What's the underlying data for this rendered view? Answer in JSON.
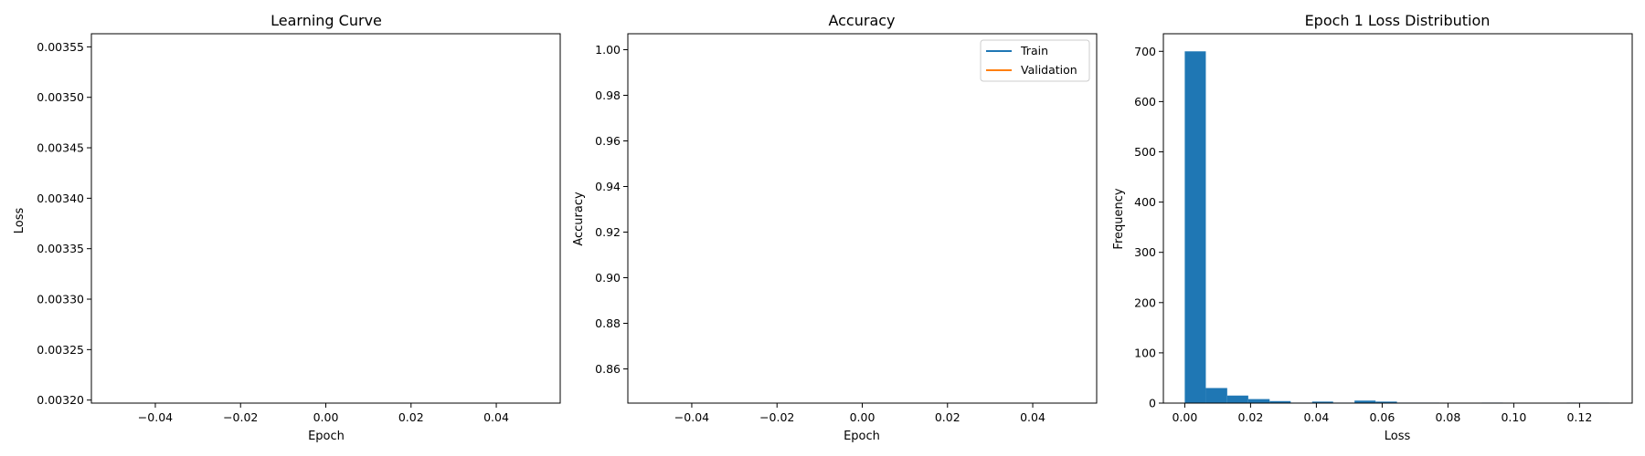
{
  "chart_data": [
    {
      "type": "line",
      "title": "Learning Curve",
      "xlabel": "Epoch",
      "ylabel": "Loss",
      "xlim": [
        -0.055,
        0.055
      ],
      "ylim": [
        0.003197,
        0.003563
      ],
      "x_ticks": [
        -0.04,
        -0.02,
        0.0,
        0.02,
        0.04
      ],
      "x_tick_labels": [
        "−0.04",
        "−0.02",
        "0.00",
        "0.02",
        "0.04"
      ],
      "y_ticks": [
        0.0032,
        0.00325,
        0.0033,
        0.00335,
        0.0034,
        0.00345,
        0.0035,
        0.00355
      ],
      "y_tick_labels": [
        "0.00320",
        "0.00325",
        "0.00330",
        "0.00335",
        "0.00340",
        "0.00345",
        "0.00350",
        "0.00355"
      ],
      "series": []
    },
    {
      "type": "line",
      "title": "Accuracy",
      "xlabel": "Epoch",
      "ylabel": "Accuracy",
      "xlim": [
        -0.055,
        0.055
      ],
      "ylim": [
        0.845,
        1.007
      ],
      "x_ticks": [
        -0.04,
        -0.02,
        0.0,
        0.02,
        0.04
      ],
      "x_tick_labels": [
        "−0.04",
        "−0.02",
        "0.00",
        "0.02",
        "0.04"
      ],
      "y_ticks": [
        0.86,
        0.88,
        0.9,
        0.92,
        0.94,
        0.96,
        0.98,
        1.0
      ],
      "y_tick_labels": [
        "0.86",
        "0.88",
        "0.90",
        "0.92",
        "0.94",
        "0.96",
        "0.98",
        "1.00"
      ],
      "legend_position": "top-right",
      "series": [
        {
          "name": "Train",
          "color": "#1f77b4",
          "x": [],
          "y": []
        },
        {
          "name": "Validation",
          "color": "#ff7f0e",
          "x": [],
          "y": []
        }
      ]
    },
    {
      "type": "bar",
      "title": "Epoch 1 Loss Distribution",
      "xlabel": "Loss",
      "ylabel": "Frequency",
      "xlim": [
        -0.0065,
        0.136
      ],
      "ylim": [
        0,
        735
      ],
      "x_ticks": [
        0.0,
        0.02,
        0.04,
        0.06,
        0.08,
        0.1,
        0.12
      ],
      "x_tick_labels": [
        "0.00",
        "0.02",
        "0.04",
        "0.06",
        "0.08",
        "0.10",
        "0.12"
      ],
      "y_ticks": [
        0,
        100,
        200,
        300,
        400,
        500,
        600,
        700
      ],
      "y_tick_labels": [
        "0",
        "100",
        "200",
        "300",
        "400",
        "500",
        "600",
        "700"
      ],
      "color": "#1f77b4",
      "bins": [
        {
          "x0": 0.0,
          "x1": 0.0064,
          "count": 700
        },
        {
          "x0": 0.0064,
          "x1": 0.0129,
          "count": 30
        },
        {
          "x0": 0.0129,
          "x1": 0.0193,
          "count": 15
        },
        {
          "x0": 0.0193,
          "x1": 0.0258,
          "count": 8
        },
        {
          "x0": 0.0258,
          "x1": 0.0322,
          "count": 4
        },
        {
          "x0": 0.0322,
          "x1": 0.0387,
          "count": 1
        },
        {
          "x0": 0.0387,
          "x1": 0.0451,
          "count": 3
        },
        {
          "x0": 0.0451,
          "x1": 0.0516,
          "count": 1
        },
        {
          "x0": 0.0516,
          "x1": 0.058,
          "count": 5
        },
        {
          "x0": 0.058,
          "x1": 0.0645,
          "count": 3
        },
        {
          "x0": 0.0645,
          "x1": 0.0709,
          "count": 1
        },
        {
          "x0": 0.0709,
          "x1": 0.0774,
          "count": 1
        },
        {
          "x0": 0.0774,
          "x1": 0.0838,
          "count": 0
        },
        {
          "x0": 0.0838,
          "x1": 0.0903,
          "count": 0
        },
        {
          "x0": 0.0903,
          "x1": 0.0967,
          "count": 1
        },
        {
          "x0": 0.0967,
          "x1": 0.1032,
          "count": 0
        },
        {
          "x0": 0.1032,
          "x1": 0.1096,
          "count": 0
        },
        {
          "x0": 0.1096,
          "x1": 0.1161,
          "count": 0
        },
        {
          "x0": 0.1161,
          "x1": 0.1225,
          "count": 1
        },
        {
          "x0": 0.1225,
          "x1": 0.129,
          "count": 1
        }
      ]
    }
  ]
}
